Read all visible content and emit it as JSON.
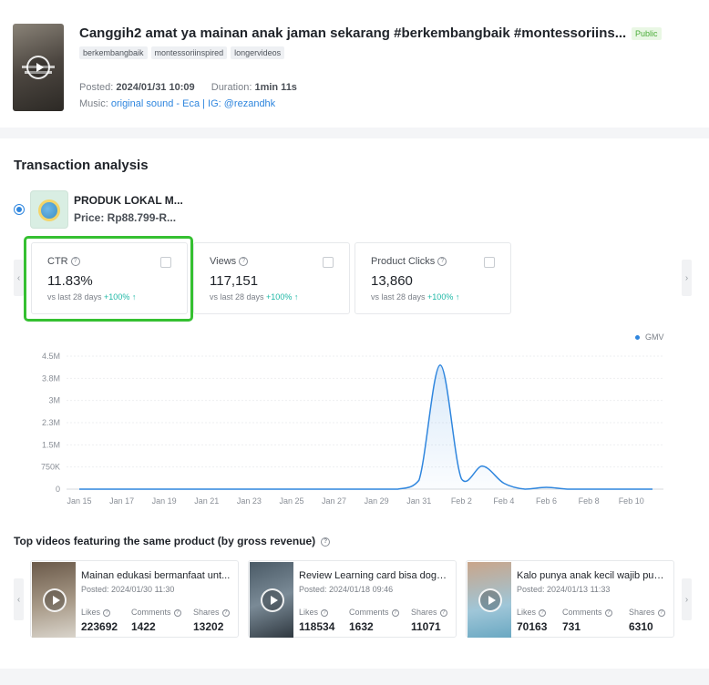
{
  "video": {
    "title": "Canggih2 amat ya mainan anak jaman sekarang #berkembangbaik #montessoriins...",
    "visibility": "Public",
    "tags": [
      "berkembangbaik",
      "montessoriinspired",
      "longervideos"
    ],
    "posted_label": "Posted:",
    "posted_value": "2024/01/31 10:09",
    "duration_label": "Duration:",
    "duration_value": "1min 11s",
    "music_label": "Music:",
    "music_value": "original sound - Eca | IG: @rezandhk"
  },
  "transaction": {
    "title": "Transaction analysis",
    "product": {
      "name": "PRODUK LOKAL M...",
      "price": "Price: Rp88.799-R..."
    },
    "metrics": [
      {
        "label": "CTR",
        "value": "11.83%",
        "vs": "vs last 28 days",
        "change": "+100%"
      },
      {
        "label": "Views",
        "value": "117,151",
        "vs": "vs last 28 days",
        "change": "+100%"
      },
      {
        "label": "Product Clicks",
        "value": "13,860",
        "vs": "vs last 28 days",
        "change": "+100%"
      }
    ]
  },
  "chart_data": {
    "type": "area",
    "series": [
      {
        "name": "GMV",
        "color": "#2f86de"
      }
    ],
    "x": [
      "Jan 15",
      "Jan 16",
      "Jan 17",
      "Jan 18",
      "Jan 19",
      "Jan 20",
      "Jan 21",
      "Jan 22",
      "Jan 23",
      "Jan 24",
      "Jan 25",
      "Jan 26",
      "Jan 27",
      "Jan 28",
      "Jan 29",
      "Jan 30",
      "Jan 31",
      "Feb 1",
      "Feb 2",
      "Feb 3",
      "Feb 4",
      "Feb 5",
      "Feb 6",
      "Feb 7",
      "Feb 8",
      "Feb 9",
      "Feb 10",
      "Feb 11"
    ],
    "values": [
      0,
      0,
      0,
      0,
      0,
      0,
      0,
      0,
      0,
      0,
      0,
      0,
      0,
      0,
      0,
      0,
      300000,
      4200000,
      350000,
      780000,
      200000,
      0,
      60000,
      0,
      0,
      0,
      0,
      0
    ],
    "xticks": [
      "Jan 15",
      "Jan 17",
      "Jan 19",
      "Jan 21",
      "Jan 23",
      "Jan 25",
      "Jan 27",
      "Jan 29",
      "Jan 31",
      "Feb 2",
      "Feb 4",
      "Feb 6",
      "Feb 8",
      "Feb 10"
    ],
    "yticks": [
      "0",
      "750K",
      "1.5M",
      "2.3M",
      "3M",
      "3.8M",
      "4.5M"
    ],
    "ylim": [
      0,
      4500000
    ],
    "grid": true,
    "legend": "top-right"
  },
  "top_videos": {
    "title": "Top videos featuring the same product (by gross revenue)",
    "likes_label": "Likes",
    "comments_label": "Comments",
    "shares_label": "Shares",
    "items": [
      {
        "title": "Mainan edukasi bermanfaat unt...",
        "posted": "Posted: 2024/01/30 11:30",
        "likes": "223692",
        "comments": "1422",
        "shares": "13202"
      },
      {
        "title": "Review Learning card bisa doge...",
        "posted": "Posted: 2024/01/18 09:46",
        "likes": "118534",
        "comments": "1632",
        "shares": "11071"
      },
      {
        "title": "Kalo punya anak kecil wajib pun...",
        "posted": "Posted: 2024/01/13 11:33",
        "likes": "70163",
        "comments": "731",
        "shares": "6310"
      }
    ]
  },
  "colors": {
    "accent": "#2f86de",
    "highlight": "#35c031",
    "up": "#1fb8a6",
    "public": "#4cad3a"
  },
  "icons": {
    "play": "play-icon",
    "info": "info-icon",
    "arrow_left": "chevron-left-icon",
    "arrow_right": "chevron-right-icon"
  }
}
